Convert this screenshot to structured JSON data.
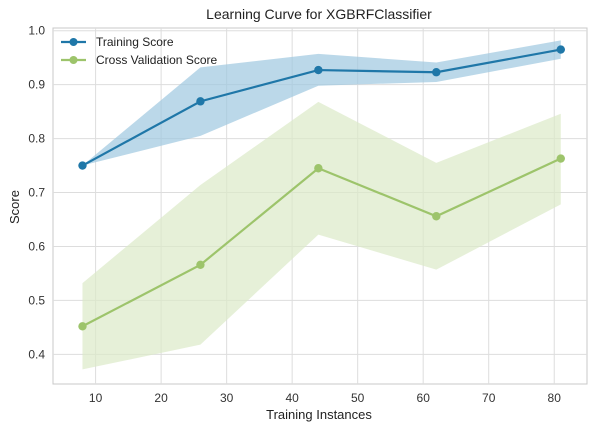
{
  "chart_data": {
    "type": "line",
    "title": "Learning Curve for XGBRFClassifier",
    "xlabel": "Training Instances",
    "ylabel": "Score",
    "xlim": [
      3.5,
      85
    ],
    "ylim": [
      0.345,
      1.005
    ],
    "x_ticks": [
      10,
      20,
      30,
      40,
      50,
      60,
      70,
      80
    ],
    "y_ticks": [
      0.4,
      0.5,
      0.6,
      0.7,
      0.8,
      0.9,
      1.0
    ],
    "x_tick_labels": [
      "10",
      "20",
      "30",
      "40",
      "50",
      "60",
      "70",
      "80"
    ],
    "y_tick_labels": [
      "0.4",
      "0.5",
      "0.6",
      "0.7",
      "0.8",
      "0.9",
      "1.0"
    ],
    "grid": true,
    "legend_position": "top-left",
    "x": [
      8,
      26,
      44,
      62,
      81
    ],
    "series": [
      {
        "name": "Training Score",
        "color": "#1f77a8",
        "band_color": "#9ec8df",
        "values": [
          0.75,
          0.869,
          0.927,
          0.923,
          0.965
        ],
        "band_lower": [
          0.75,
          0.805,
          0.898,
          0.905,
          0.948
        ],
        "band_upper": [
          0.75,
          0.932,
          0.957,
          0.941,
          0.982
        ]
      },
      {
        "name": "Cross Validation Score",
        "color": "#9dc46b",
        "band_color": "#dbe9c8",
        "values": [
          0.452,
          0.566,
          0.745,
          0.656,
          0.763
        ],
        "band_lower": [
          0.372,
          0.418,
          0.622,
          0.557,
          0.678
        ],
        "band_upper": [
          0.532,
          0.714,
          0.868,
          0.755,
          0.846
        ]
      }
    ]
  }
}
